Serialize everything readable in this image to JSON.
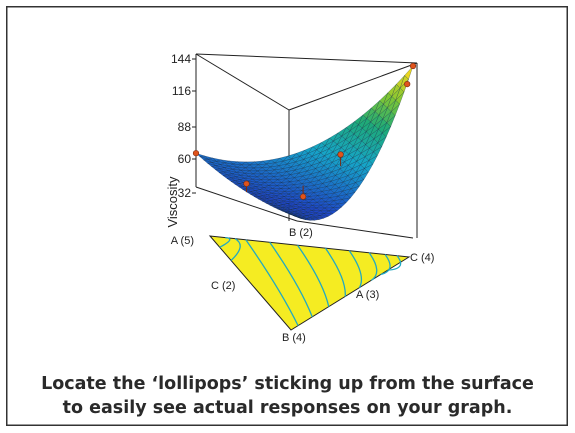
{
  "caption": {
    "line1": "Locate the ‘lollipops’ sticking up from the surface",
    "line2": "to easily see actual responses on your graph."
  },
  "chart_data": {
    "type": "surface",
    "zlabel": "Viscosity",
    "z_ticks": [
      32,
      60,
      88,
      116,
      144
    ],
    "zlim": [
      20,
      144
    ],
    "vertex_labels": {
      "A": "A (5)",
      "B": "B (4)",
      "C": "C (4)",
      "B_back": "B (2)"
    },
    "edge_labels": {
      "AB": "C (2)",
      "BC": "A (3)"
    },
    "colors": {
      "contour_fill": "#f5ec22",
      "contour_line": "#22a9c2",
      "surface_low": "#1c63c8",
      "surface_mid": "#1bb38c",
      "surface_high": "#f0d21e",
      "design_point": "#e0541c"
    },
    "design_points": [
      {
        "a": 1.0,
        "b": 0.0,
        "c": 0.0,
        "viscosity": 42
      },
      {
        "a": 0.5,
        "b": 0.5,
        "c": 0.0,
        "viscosity": 32
      },
      {
        "a": 0.33,
        "b": 0.33,
        "c": 0.34,
        "viscosity": 31
      },
      {
        "a": 0.2,
        "b": 0.25,
        "c": 0.55,
        "viscosity": 68
      },
      {
        "a": 0.0,
        "b": 0.0,
        "c": 1.0,
        "viscosity": 144
      },
      {
        "a": 0.0,
        "b": 0.05,
        "c": 0.95,
        "viscosity": 130
      }
    ]
  }
}
